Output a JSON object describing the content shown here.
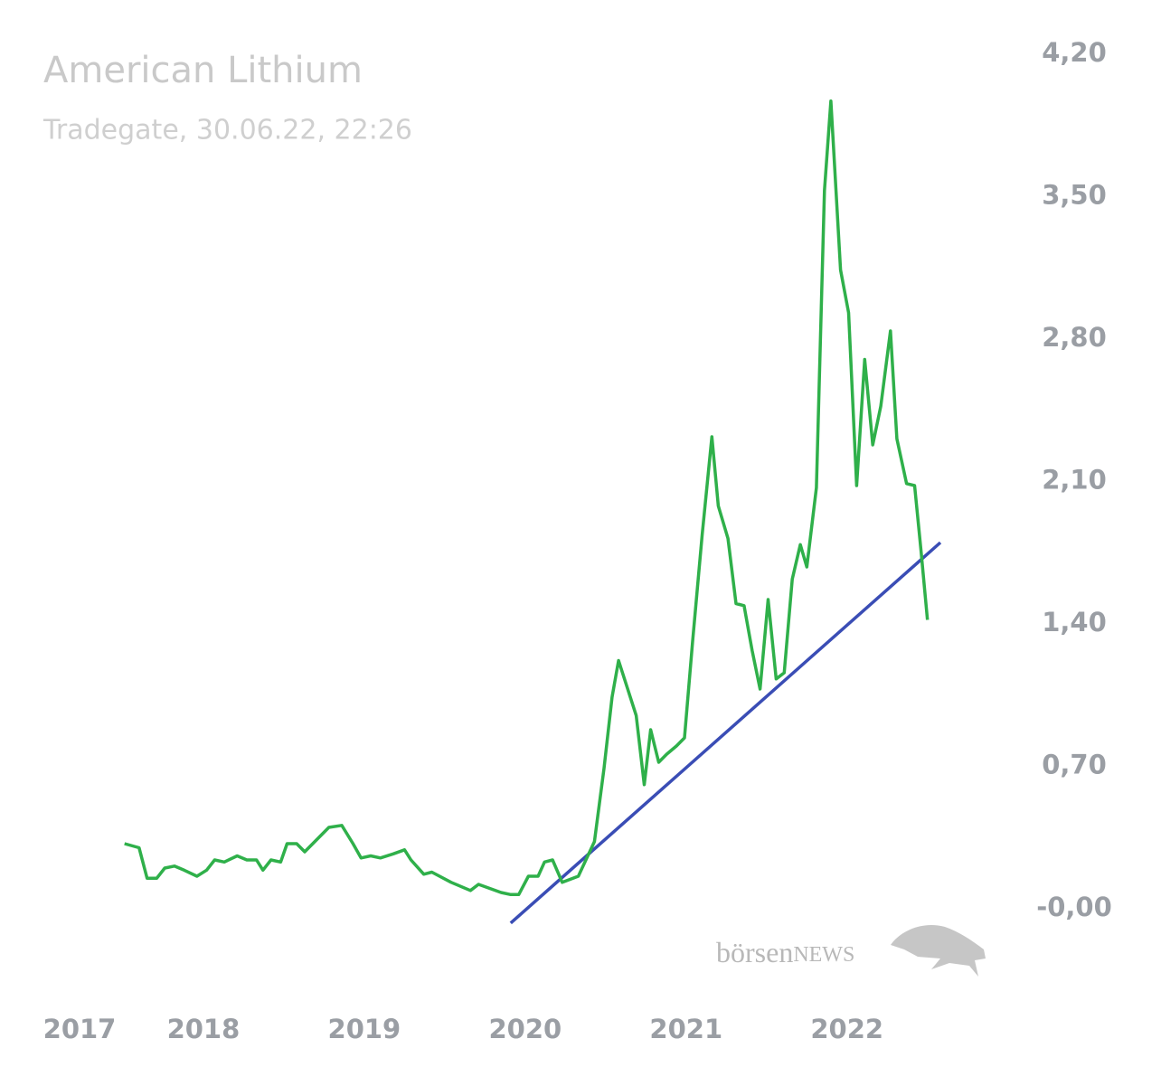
{
  "chart_data": {
    "type": "line",
    "title": "American Lithium",
    "subtitle": "Tradegate, 30.06.22, 22:26",
    "watermark": [
      "börsen",
      "NEWS"
    ],
    "x": [
      2017.51,
      2017.6,
      2017.65,
      2017.71,
      2017.76,
      2017.82,
      2017.88,
      2017.96,
      2018.02,
      2018.07,
      2018.13,
      2018.21,
      2018.27,
      2018.33,
      2018.37,
      2018.42,
      2018.48,
      2018.52,
      2018.58,
      2018.63,
      2018.78,
      2018.86,
      2018.93,
      2018.98,
      2019.04,
      2019.1,
      2019.18,
      2019.25,
      2019.29,
      2019.37,
      2019.42,
      2019.54,
      2019.66,
      2019.71,
      2019.85,
      2019.91,
      2019.96,
      2020.02,
      2020.08,
      2020.12,
      2020.17,
      2020.23,
      2020.33,
      2020.43,
      2020.49,
      2020.54,
      2020.58,
      2020.69,
      2020.74,
      2020.78,
      2020.83,
      2020.88,
      2020.94,
      2020.99,
      2021.04,
      2021.1,
      2021.16,
      2021.2,
      2021.26,
      2021.31,
      2021.36,
      2021.41,
      2021.46,
      2021.51,
      2021.56,
      2021.61,
      2021.66,
      2021.71,
      2021.75,
      2021.81,
      2021.86,
      2021.9,
      2021.96,
      2022.01,
      2022.06,
      2022.11,
      2022.16,
      2022.21,
      2022.27,
      2022.31,
      2022.37,
      2022.42,
      2022.46,
      2022.5
    ],
    "series": [
      {
        "color": "#2fb04a",
        "values": [
          0.32,
          0.3,
          0.15,
          0.15,
          0.2,
          0.21,
          0.19,
          0.16,
          0.19,
          0.24,
          0.23,
          0.26,
          0.24,
          0.24,
          0.19,
          0.24,
          0.23,
          0.32,
          0.32,
          0.28,
          0.4,
          0.41,
          0.32,
          0.25,
          0.26,
          0.25,
          0.27,
          0.29,
          0.24,
          0.17,
          0.18,
          0.13,
          0.09,
          0.12,
          0.08,
          0.07,
          0.07,
          0.16,
          0.16,
          0.23,
          0.24,
          0.13,
          0.16,
          0.33,
          0.69,
          1.04,
          1.22,
          0.95,
          0.61,
          0.88,
          0.72,
          0.76,
          0.8,
          0.84,
          1.31,
          1.84,
          2.32,
          1.98,
          1.82,
          1.5,
          1.49,
          1.27,
          1.08,
          1.52,
          1.13,
          1.16,
          1.62,
          1.79,
          1.68,
          2.07,
          3.53,
          3.97,
          3.14,
          2.93,
          2.08,
          2.7,
          2.28,
          2.47,
          2.84,
          2.31,
          2.09,
          2.08,
          1.76,
          1.42
        ]
      }
    ],
    "trendline": {
      "color": "#3a4db5",
      "x": [
        2019.91,
        2022.58
      ],
      "values": [
        -0.07,
        1.8
      ]
    },
    "xlim": [
      2016.75,
      2022.85
    ],
    "xticks": [
      2017,
      2018,
      2019,
      2020,
      2021,
      2022
    ],
    "ylim": [
      -0.3,
      4.3
    ],
    "yticks": [
      {
        "value": 0,
        "label": "-0,00"
      },
      {
        "value": 0.7,
        "label": "0,70"
      },
      {
        "value": 1.4,
        "label": "1,40"
      },
      {
        "value": 2.1,
        "label": "2,10"
      },
      {
        "value": 2.8,
        "label": "2,80"
      },
      {
        "value": 3.5,
        "label": "3,50"
      },
      {
        "value": 4.2,
        "label": "4,20"
      }
    ],
    "grid": false
  }
}
